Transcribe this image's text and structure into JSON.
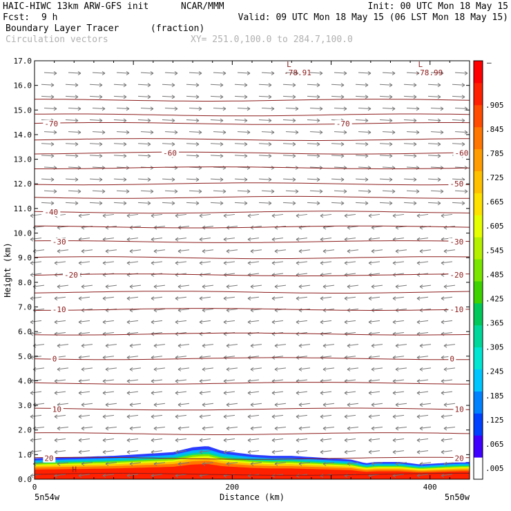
{
  "header": {
    "model": "HAIC-HIWC 13km ARW-GFS init",
    "org": "NCAR/MMM",
    "init": "Init: 00 UTC Mon 18 May 15",
    "fcst_label": "Fcst:",
    "fcst_value": "9 h",
    "valid": "Valid: 09 UTC Mon 18 May 15 (06 LST Mon 18 May 15)",
    "field": "Boundary Layer Tracer",
    "field_units": "(fraction)",
    "vectors": "Circulation vectors",
    "xy": "XY= 251.0,100.0 to 284.7,100.0"
  },
  "chart_data": {
    "type": "cross-section",
    "ylabel": "Height (km)",
    "xlabel": "Distance (km)",
    "ylim": [
      0,
      17
    ],
    "xlim": [
      0,
      440
    ],
    "yticks": [
      "0.0",
      "1.0",
      "2.0",
      "3.0",
      "4.0",
      "5.0",
      "6.0",
      "7.0",
      "8.0",
      "9.0",
      "10.0",
      "11.0",
      "12.0",
      "13.0",
      "14.0",
      "15.0",
      "16.0",
      "17.0"
    ],
    "xticks": [
      "0",
      "200",
      "400"
    ],
    "xtick_values": [
      0,
      200,
      400
    ],
    "left_endpoint": "5n54w",
    "right_endpoint": "5n50w",
    "grid": false,
    "temperature_contours": {
      "color": "#8b1a1a",
      "levels_km": [
        0.2,
        0.85,
        1.85,
        2.85,
        3.9,
        4.9,
        5.9,
        6.9,
        7.6,
        8.3,
        9.0,
        9.65,
        10.25,
        10.85,
        11.45,
        12.0,
        12.65,
        13.25,
        13.8,
        14.45,
        14.8,
        15.4
      ],
      "labels": [
        {
          "text": "-70",
          "x": 10,
          "y": 14.45
        },
        {
          "text": "-70",
          "x": 305,
          "y": 14.45
        },
        {
          "text": "-60",
          "x": 130,
          "y": 13.25
        },
        {
          "text": "-60",
          "x": 425,
          "y": 13.25
        },
        {
          "text": "-50",
          "x": 420,
          "y": 12.0
        },
        {
          "text": "-40",
          "x": 10,
          "y": 10.85
        },
        {
          "text": "-30",
          "x": 18,
          "y": 9.65
        },
        {
          "text": "-30",
          "x": 420,
          "y": 9.65
        },
        {
          "text": "-20",
          "x": 30,
          "y": 8.3
        },
        {
          "text": "-20",
          "x": 420,
          "y": 8.3
        },
        {
          "text": "-10",
          "x": 18,
          "y": 6.9
        },
        {
          "text": "-10",
          "x": 420,
          "y": 6.9
        },
        {
          "text": "0",
          "x": 18,
          "y": 4.9
        },
        {
          "text": "0",
          "x": 420,
          "y": 4.9
        },
        {
          "text": "10",
          "x": 18,
          "y": 2.85
        },
        {
          "text": "10",
          "x": 425,
          "y": 2.85
        },
        {
          "text": "20",
          "x": 10,
          "y": 0.85
        },
        {
          "text": "20",
          "x": 425,
          "y": 0.85
        }
      ],
      "lows": [
        {
          "mark": "L",
          "value": "-78.91",
          "x": 255,
          "y": 16.75
        },
        {
          "mark": "L",
          "value": "-78.99",
          "x": 388,
          "y": 16.75
        }
      ],
      "highs": [
        {
          "mark": "H",
          "x": 38,
          "y": 0.3
        }
      ]
    },
    "tracer": {
      "top_km": [
        [
          0,
          0.85
        ],
        [
          40,
          0.9
        ],
        [
          80,
          0.95
        ],
        [
          100,
          1.0
        ],
        [
          120,
          1.05
        ],
        [
          140,
          1.1
        ],
        [
          160,
          1.3
        ],
        [
          175,
          1.35
        ],
        [
          190,
          1.15
        ],
        [
          220,
          1.0
        ],
        [
          240,
          0.95
        ],
        [
          260,
          0.95
        ],
        [
          280,
          0.9
        ],
        [
          300,
          0.85
        ],
        [
          320,
          0.8
        ],
        [
          335,
          0.65
        ],
        [
          345,
          0.7
        ],
        [
          370,
          0.7
        ],
        [
          390,
          0.6
        ],
        [
          410,
          0.65
        ],
        [
          430,
          0.7
        ],
        [
          440,
          0.7
        ]
      ]
    },
    "vectors": {
      "upper_km_min": 11.0,
      "wind_direction_upper": "east",
      "wind_direction_lower": "west"
    },
    "colorbar": {
      "labels": [
        ".005",
        ".065",
        ".125",
        ".185",
        ".245",
        ".305",
        ".365",
        ".425",
        ".485",
        ".545",
        ".605",
        ".665",
        ".725",
        ".785",
        ".845",
        ".905"
      ],
      "colors": [
        "#ffffff",
        "#3f00ff",
        "#0040ff",
        "#0082ff",
        "#00c6ff",
        "#00e6d2",
        "#00d79a",
        "#00c85a",
        "#3ed200",
        "#7ae600",
        "#b4f000",
        "#e6ff00",
        "#ffe100",
        "#ffc000",
        "#ff9d00",
        "#ff7600",
        "#ff4c00",
        "#ff2000",
        "#ff0000"
      ],
      "top_label": "–"
    }
  }
}
